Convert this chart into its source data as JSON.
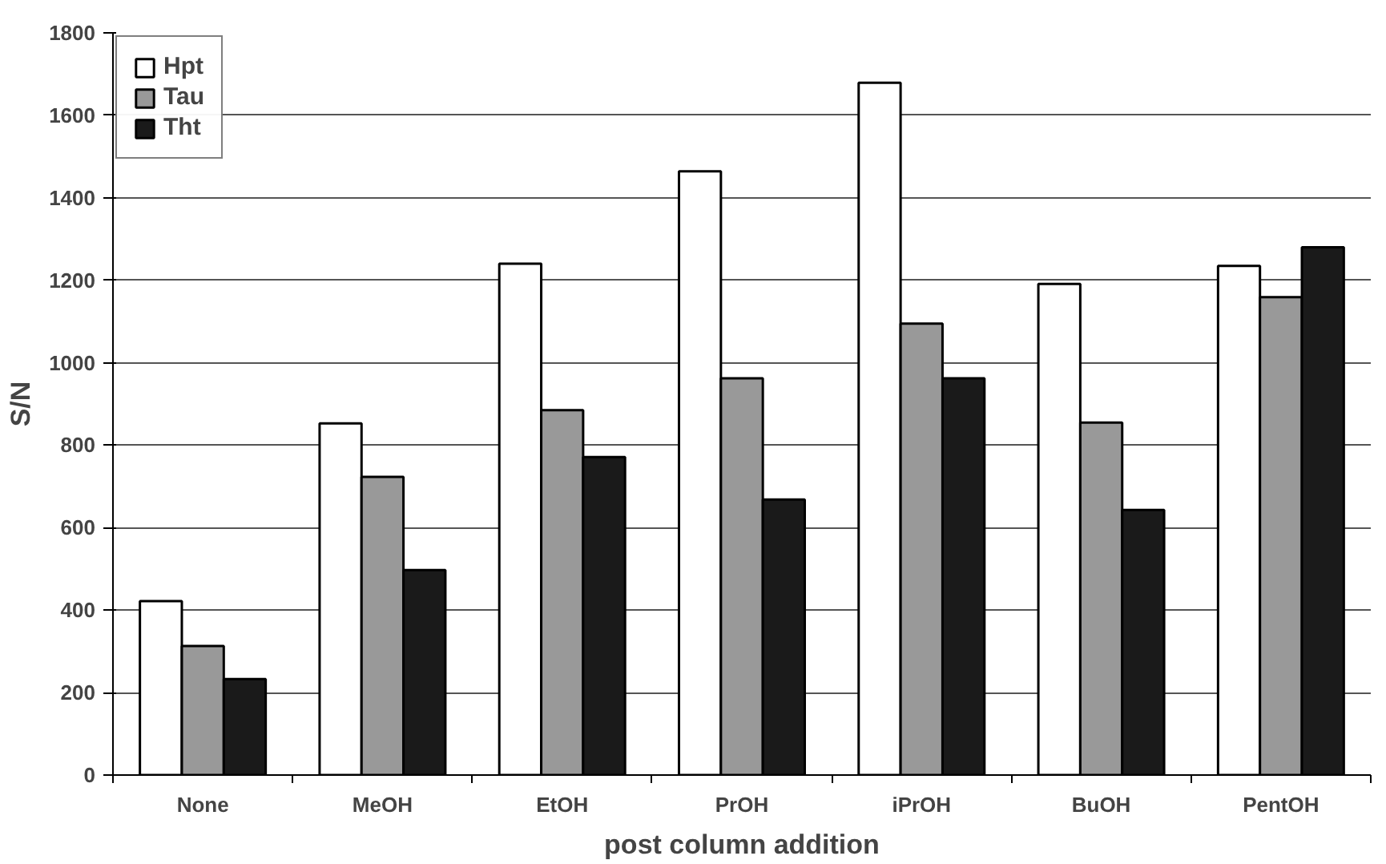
{
  "chart_data": {
    "type": "bar",
    "xlabel": "post column addition",
    "ylabel": "S/N",
    "categories": [
      "None",
      "MeOH",
      "EtOH",
      "PrOH",
      "iPrOH",
      "BuOH",
      "PentOH"
    ],
    "series": [
      {
        "name": "Hpt",
        "color": "#ffffff",
        "values": [
          422,
          853,
          1240,
          1464,
          1679,
          1191,
          1235
        ]
      },
      {
        "name": "Tau",
        "color": "#999999",
        "values": [
          313,
          723,
          885,
          962,
          1095,
          855,
          1159
        ]
      },
      {
        "name": "Tht",
        "color": "#1a1a1a",
        "values": [
          233,
          497,
          771,
          668,
          962,
          643,
          1280
        ]
      }
    ],
    "ylim": [
      0,
      1800
    ],
    "yticks": [
      0,
      200,
      400,
      600,
      800,
      1000,
      1200,
      1400,
      1600,
      1800
    ],
    "grid": "y",
    "legend": "top left"
  }
}
